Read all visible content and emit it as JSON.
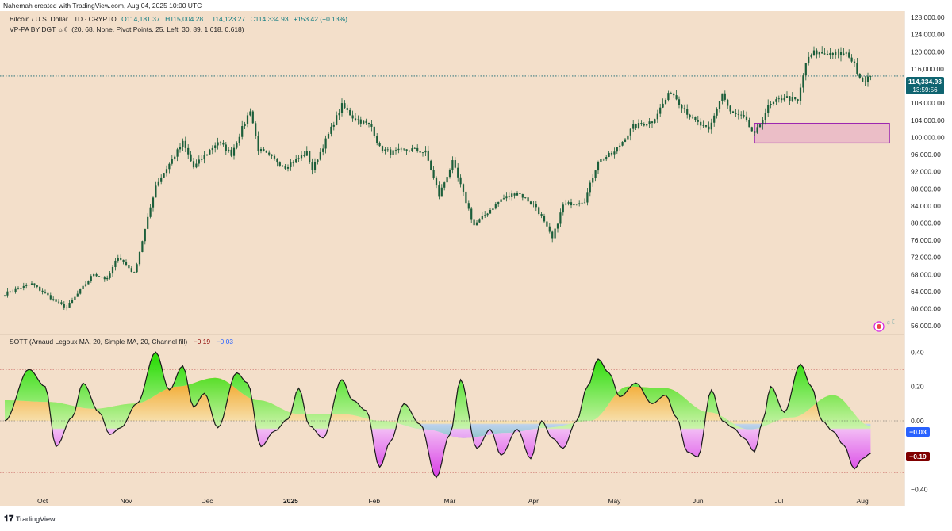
{
  "header": {
    "credit": "Nahemah created with TradingView.com, Aug 04, 2025 10:00 UTC",
    "symbol": "Bitcoin / U.S. Dollar · 1D · CRYPTO",
    "open": "O114,181.37",
    "high": "H115,004.28",
    "low": "L114,123.27",
    "close": "C114,334.93",
    "change": "+153.42 (+0.13%)",
    "indicator_vp": "VP-PA BY DGT ☼☾ (20, 68, None, Pivot Points, 25, Left, 30, 89, 1.618, 0.618)"
  },
  "price_badge": {
    "value": "114,334.93",
    "countdown": "13:59:56"
  },
  "oscillator": {
    "title": "SOTT (Arnaud Legoux MA, 20, Simple MA, 20, Channel fill)",
    "value1": "−0.19",
    "value2": "−0.03",
    "badge_value2": "−0.03",
    "badge_value1": "−0.19"
  },
  "footer": {
    "brand": "TradingView"
  },
  "colors": {
    "background": "#f3dfca",
    "candle_color": "#1b5e3a",
    "last_price": "#0f6470",
    "box_fill": "#e8b3c6",
    "box_stroke": "#9c27b0",
    "osc_up": "#22dd00",
    "osc_down": "#d21ee5",
    "signal_warm": "#f4b32e",
    "signal_cool": "#8fb2e8",
    "value1_badge": "#800000",
    "value2_badge": "#2962ff"
  },
  "chart_data": [
    {
      "type": "candlestick",
      "title": "Bitcoin / U.S. Dollar · 1D · CRYPTO",
      "y_ticks": [
        "128,000.00",
        "124,000.00",
        "120,000.00",
        "116,000.00",
        "112,000.00",
        "108,000.00",
        "104,000.00",
        "100,000.00",
        "96,000.00",
        "92,000.00",
        "88,000.00",
        "84,000.00",
        "80,000.00",
        "76,000.00",
        "72,000.00",
        "68,000.00",
        "64,000.00",
        "60,000.00",
        "56,000.00"
      ],
      "ylim": [
        54000,
        129500
      ],
      "x_ticks": [
        "Oct",
        "Nov",
        "Dec",
        "2025",
        "Feb",
        "Mar",
        "Apr",
        "May",
        "Jun",
        "Jul",
        "Aug"
      ],
      "date_range": [
        "2024-09-17",
        "2025-08-04"
      ],
      "last_price": 114334.93,
      "zone": {
        "start": "2025-06-22",
        "end": "2025-08-11",
        "top": 103300,
        "bottom": 98700
      },
      "close_path": [
        [
          "2024-09-17",
          63500
        ],
        [
          "2024-09-27",
          65800
        ],
        [
          "2024-10-07",
          61200
        ],
        [
          "2024-10-10",
          60300
        ],
        [
          "2024-10-20",
          68200
        ],
        [
          "2024-10-25",
          66800
        ],
        [
          "2024-10-29",
          72300
        ],
        [
          "2024-11-04",
          68200
        ],
        [
          "2024-11-12",
          88800
        ],
        [
          "2024-11-22",
          98800
        ],
        [
          "2024-11-26",
          93000
        ],
        [
          "2024-12-05",
          99000
        ],
        [
          "2024-12-10",
          96200
        ],
        [
          "2024-12-17",
          106500
        ],
        [
          "2024-12-20",
          97200
        ],
        [
          "2024-12-30",
          93200
        ],
        [
          "2025-01-07",
          96400
        ],
        [
          "2025-01-09",
          92500
        ],
        [
          "2025-01-20",
          107500
        ],
        [
          "2025-01-24",
          104800
        ],
        [
          "2025-01-31",
          102500
        ],
        [
          "2025-02-03",
          97500
        ],
        [
          "2025-02-07",
          96500
        ],
        [
          "2025-02-15",
          97200
        ],
        [
          "2025-02-20",
          96500
        ],
        [
          "2025-02-25",
          86500
        ],
        [
          "2025-03-02",
          94200
        ],
        [
          "2025-03-10",
          79500
        ],
        [
          "2025-03-20",
          85500
        ],
        [
          "2025-03-26",
          87200
        ],
        [
          "2025-04-02",
          83800
        ],
        [
          "2025-04-08",
          76300
        ],
        [
          "2025-04-12",
          84200
        ],
        [
          "2025-04-20",
          85300
        ],
        [
          "2025-04-25",
          94500
        ],
        [
          "2025-05-01",
          96500
        ],
        [
          "2025-05-08",
          102500
        ],
        [
          "2025-05-15",
          103800
        ],
        [
          "2025-05-22",
          110800
        ],
        [
          "2025-05-30",
          104200
        ],
        [
          "2025-06-05",
          101500
        ],
        [
          "2025-06-10",
          110300
        ],
        [
          "2025-06-13",
          105800
        ],
        [
          "2025-06-18",
          104500
        ],
        [
          "2025-06-22",
          100500
        ],
        [
          "2025-06-27",
          107200
        ],
        [
          "2025-07-03",
          109500
        ],
        [
          "2025-07-08",
          108300
        ],
        [
          "2025-07-11",
          117500
        ],
        [
          "2025-07-14",
          119800
        ],
        [
          "2025-07-22",
          119500
        ],
        [
          "2025-07-27",
          119200
        ],
        [
          "2025-08-01",
          113200
        ],
        [
          "2025-08-04",
          114335
        ]
      ]
    },
    {
      "type": "area",
      "title": "SOTT (Arnaud Legoux MA, 20, Simple MA, 20, Channel fill)",
      "y_ticks": [
        "0.40",
        "0.20",
        "0.00",
        "−0.20",
        "−0.40"
      ],
      "ylim": [
        -0.42,
        0.42
      ],
      "reference_lines": [
        0.3,
        -0.3
      ],
      "last_values": [
        -0.19,
        -0.03
      ],
      "sott": [
        [
          "2024-09-17",
          0.0
        ],
        [
          "2024-09-26",
          0.3
        ],
        [
          "2024-10-02",
          0.2
        ],
        [
          "2024-10-06",
          -0.15
        ],
        [
          "2024-10-12",
          0.02
        ],
        [
          "2024-10-16",
          0.22
        ],
        [
          "2024-10-22",
          0.05
        ],
        [
          "2024-10-26",
          -0.08
        ],
        [
          "2024-10-30",
          -0.04
        ],
        [
          "2024-11-05",
          0.1
        ],
        [
          "2024-11-12",
          0.4
        ],
        [
          "2024-11-17",
          0.18
        ],
        [
          "2024-11-22",
          0.32
        ],
        [
          "2024-11-26",
          0.08
        ],
        [
          "2024-11-30",
          0.16
        ],
        [
          "2024-12-05",
          -0.04
        ],
        [
          "2024-12-12",
          0.28
        ],
        [
          "2024-12-16",
          0.22
        ],
        [
          "2024-12-21",
          -0.15
        ],
        [
          "2024-12-26",
          -0.06
        ],
        [
          "2024-12-31",
          0.01
        ],
        [
          "2025-01-04",
          0.19
        ],
        [
          "2025-01-08",
          -0.03
        ],
        [
          "2025-01-13",
          -0.1
        ],
        [
          "2025-01-20",
          0.24
        ],
        [
          "2025-01-24",
          0.12
        ],
        [
          "2025-01-29",
          0.06
        ],
        [
          "2025-02-03",
          -0.27
        ],
        [
          "2025-02-07",
          -0.12
        ],
        [
          "2025-02-12",
          0.1
        ],
        [
          "2025-02-18",
          -0.02
        ],
        [
          "2025-02-24",
          -0.33
        ],
        [
          "2025-03-01",
          -0.08
        ],
        [
          "2025-03-05",
          0.24
        ],
        [
          "2025-03-11",
          -0.16
        ],
        [
          "2025-03-16",
          -0.05
        ],
        [
          "2025-03-20",
          -0.2
        ],
        [
          "2025-03-26",
          -0.05
        ],
        [
          "2025-03-31",
          -0.22
        ],
        [
          "2025-04-04",
          0.0
        ],
        [
          "2025-04-08",
          -0.1
        ],
        [
          "2025-04-12",
          -0.16
        ],
        [
          "2025-04-17",
          0.0
        ],
        [
          "2025-04-21",
          0.2
        ],
        [
          "2025-04-25",
          0.36
        ],
        [
          "2025-04-29",
          0.28
        ],
        [
          "2025-05-03",
          0.14
        ],
        [
          "2025-05-09",
          0.22
        ],
        [
          "2025-05-15",
          0.1
        ],
        [
          "2025-05-20",
          0.15
        ],
        [
          "2025-05-24",
          0.02
        ],
        [
          "2025-05-28",
          -0.18
        ],
        [
          "2025-06-01",
          -0.21
        ],
        [
          "2025-06-06",
          0.18
        ],
        [
          "2025-06-10",
          0.0
        ],
        [
          "2025-06-14",
          -0.04
        ],
        [
          "2025-06-18",
          -0.1
        ],
        [
          "2025-06-22",
          -0.18
        ],
        [
          "2025-06-25",
          0.0
        ],
        [
          "2025-06-28",
          0.2
        ],
        [
          "2025-07-03",
          0.05
        ],
        [
          "2025-07-09",
          0.33
        ],
        [
          "2025-07-13",
          0.2
        ],
        [
          "2025-07-17",
          0.0
        ],
        [
          "2025-07-21",
          -0.06
        ],
        [
          "2025-07-25",
          -0.14
        ],
        [
          "2025-07-29",
          -0.28
        ],
        [
          "2025-08-01",
          -0.22
        ],
        [
          "2025-08-04",
          -0.19
        ]
      ],
      "signal": [
        [
          "2024-09-17",
          0.12
        ],
        [
          "2024-10-03",
          0.11
        ],
        [
          "2024-10-20",
          0.07
        ],
        [
          "2024-11-04",
          0.1
        ],
        [
          "2024-11-20",
          0.2
        ],
        [
          "2024-12-04",
          0.25
        ],
        [
          "2024-12-20",
          0.12
        ],
        [
          "2025-01-04",
          0.04
        ],
        [
          "2025-01-20",
          0.04
        ],
        [
          "2025-02-04",
          0.0
        ],
        [
          "2025-02-20",
          -0.05
        ],
        [
          "2025-03-06",
          -0.1
        ],
        [
          "2025-03-22",
          -0.07
        ],
        [
          "2025-04-06",
          -0.04
        ],
        [
          "2025-04-22",
          0.0
        ],
        [
          "2025-05-06",
          0.2
        ],
        [
          "2025-05-20",
          0.19
        ],
        [
          "2025-06-05",
          0.05
        ],
        [
          "2025-06-20",
          -0.05
        ],
        [
          "2025-07-06",
          0.02
        ],
        [
          "2025-07-21",
          0.15
        ],
        [
          "2025-08-04",
          -0.03
        ]
      ]
    }
  ]
}
